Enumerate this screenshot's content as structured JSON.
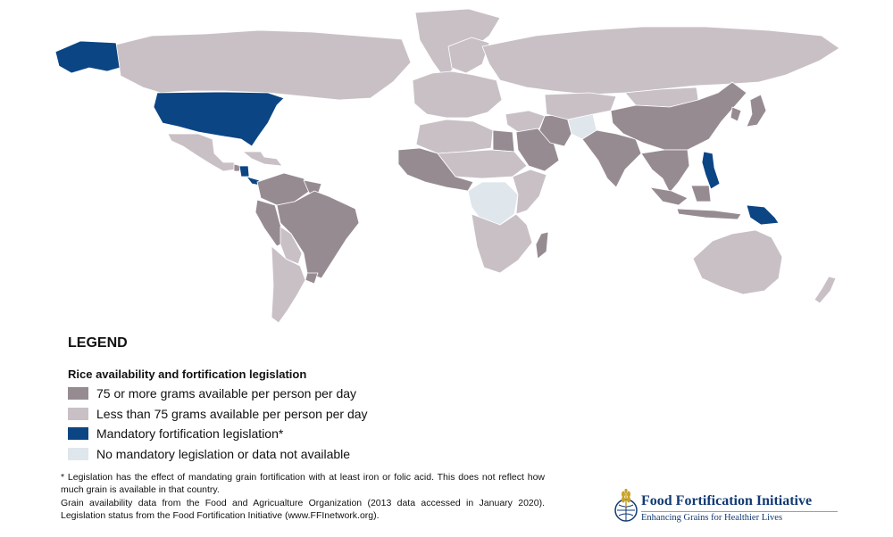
{
  "legend": {
    "title": "LEGEND",
    "subtitle": "Rice availability and fortification legislation",
    "items": [
      {
        "label": "75 or more grams available per person per day",
        "color": "#978b92"
      },
      {
        "label": "Less than 75 grams available per person per day",
        "color": "#c9c0c6"
      },
      {
        "label": "Mandatory fortification legislation*",
        "color": "#0b4584"
      },
      {
        "label": "No mandatory legislation or data not available",
        "color": "#dfe6ec"
      }
    ]
  },
  "footnotes": [
    "* Legislation has the effect of mandating grain fortification with at least iron or folic acid. This does not reflect how much grain is available in that country.",
    "Grain availability data from the Food and Agricualture Organization (2013 data accessed in January 2020). Legislation status from the Food Fortification Initiative (www.FFInetwork.org)."
  ],
  "logo": {
    "name": "Food Fortification Initiative",
    "tagline": "Enhancing Grains for Healthier Lives",
    "icon": "wheat-globe-icon"
  },
  "map": {
    "categories": {
      "high": "75 or more grams available per person per day",
      "low": "Less than 75 grams available per person per day",
      "fortified": "Mandatory fortification legislation*",
      "none": "No mandatory legislation or data not available"
    },
    "regions": {
      "alaska": "fortified",
      "canada": "low",
      "greenland": "low",
      "usa": "fortified",
      "mexico": "low",
      "nicaragua": "fortified",
      "costa-rica": "fortified",
      "central-america": "high",
      "caribbean": "low",
      "colombia-venezuela": "high",
      "guyana-suriname": "high",
      "brazil": "high",
      "peru": "high",
      "bolivia-paraguay": "low",
      "uruguay": "high",
      "argentina-chile": "low",
      "europe": "low",
      "scandinavia": "low",
      "russia": "low",
      "north-africa": "low",
      "egypt": "high",
      "west-africa": "high",
      "sahel": "low",
      "central-africa": "none",
      "east-africa": "low",
      "southern-africa": "low",
      "madagascar": "high",
      "middle-east": "low",
      "saudi-arabia": "high",
      "iran": "high",
      "afghanistan": "none",
      "central-asia": "low",
      "south-asia": "high",
      "china": "high",
      "mongolia": "low",
      "korea-japan": "high",
      "southeast-asia": "high",
      "philippines": "fortified",
      "indonesia": "high",
      "papua-new-guinea": "fortified",
      "australia": "low",
      "new-zealand": "low"
    }
  }
}
